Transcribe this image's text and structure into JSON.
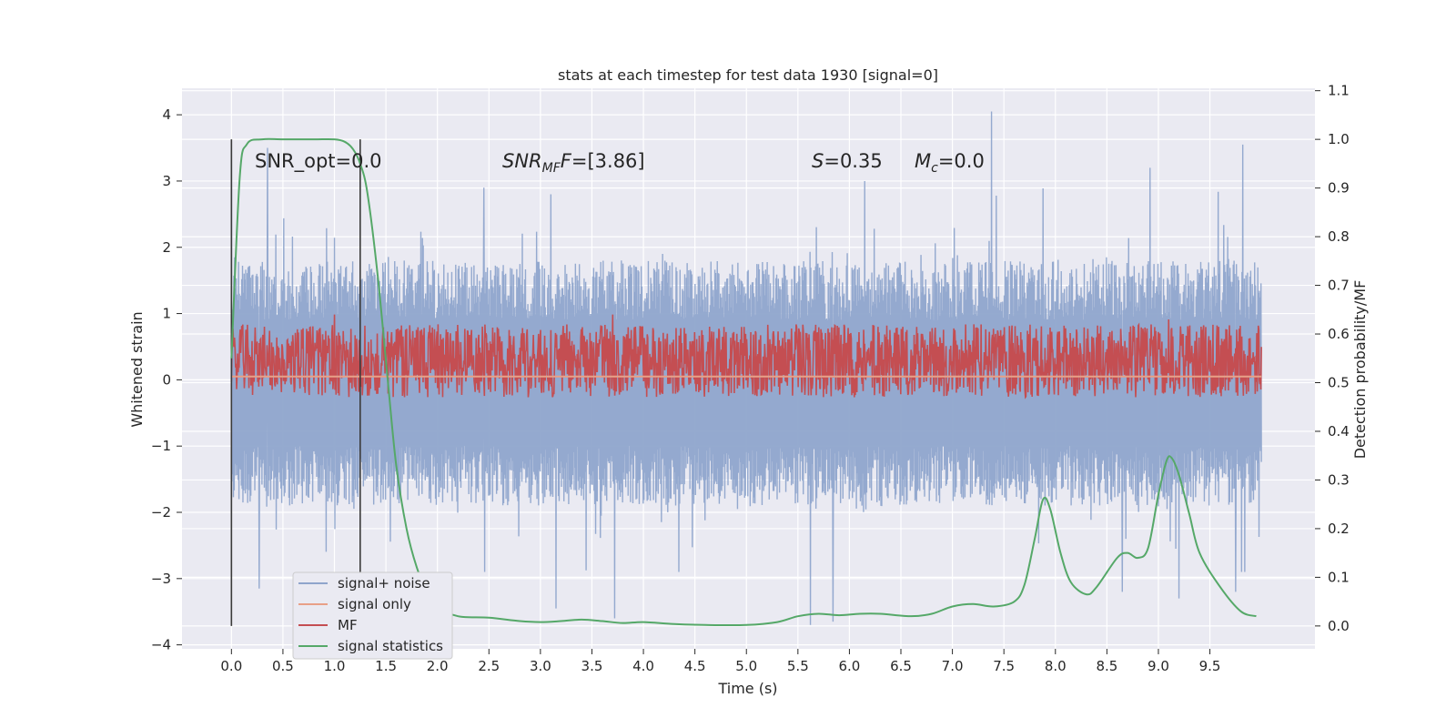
{
  "chart_data": {
    "type": "line",
    "title": "stats at each timestep for test data 1930 [signal=0]",
    "xlabel": "Time (s)",
    "ylabel": "Whitened strain",
    "y2label": "Detection probability/MF",
    "xlim": [
      -0.48,
      10.52
    ],
    "ylim": [
      -4.06,
      4.4
    ],
    "y2lim": [
      -0.047,
      1.105
    ],
    "xticks": [
      0.0,
      0.5,
      1.0,
      1.5,
      2.0,
      2.5,
      3.0,
      3.5,
      4.0,
      4.5,
      5.0,
      5.5,
      6.0,
      6.5,
      7.0,
      7.5,
      8.0,
      8.5,
      9.0,
      9.5
    ],
    "xtick_labels": [
      "0.0",
      "0.5",
      "1.0",
      "1.5",
      "2.0",
      "2.5",
      "3.0",
      "3.5",
      "4.0",
      "4.5",
      "5.0",
      "5.5",
      "6.0",
      "6.5",
      "7.0",
      "7.5",
      "8.0",
      "8.5",
      "9.0",
      "9.5"
    ],
    "yticks": [
      4,
      3,
      2,
      1,
      0,
      -1,
      -2,
      -3,
      -4
    ],
    "ytick_labels": [
      "4",
      "3",
      "2",
      "1",
      "0",
      "−1",
      "−2",
      "−3",
      "−4"
    ],
    "y2ticks": [
      1.1,
      1.0,
      0.9,
      0.8,
      0.7,
      0.6,
      0.5,
      0.4,
      0.3,
      0.2,
      0.1,
      0.0
    ],
    "y2tick_labels": [
      "1.1",
      "1.0",
      "0.9",
      "0.8",
      "0.7",
      "0.6",
      "0.5",
      "0.4",
      "0.3",
      "0.2",
      "0.1",
      "0.0"
    ],
    "grid": true,
    "legend_position": "lower-left",
    "annotations": {
      "snr_opt": "SNR_opt=0.0",
      "snr_mf_base": "SNR",
      "snr_mf_sub": "MF",
      "snr_mf_rest": "=[3.86]",
      "s_sym": "S",
      "s_val": "=0.35",
      "mc_base": "M",
      "mc_sub": "c",
      "mc_val": "=0.0"
    },
    "window_markers": {
      "x": [
        0.0,
        1.25
      ],
      "y2_range": [
        0.0,
        1.0
      ]
    },
    "series": [
      {
        "name": "signal+ noise",
        "axis": "left",
        "color": "#8fa5cc",
        "description_note": "whitened strain noise, approx. band -1.7 to 1.4 with spikes up to 4.05 and down to -3.7",
        "spikes_up": [
          [
            0.0,
            3.6
          ],
          [
            0.35,
            3.5
          ],
          [
            7.38,
            4.05
          ],
          [
            9.82,
            3.55
          ],
          [
            5.62,
            3.5
          ],
          [
            2.45,
            2.9
          ],
          [
            8.92,
            3.2
          ],
          [
            6.15,
            3.0
          ],
          [
            3.1,
            2.8
          ]
        ],
        "spikes_down": [
          [
            0.27,
            -3.15
          ],
          [
            3.72,
            -3.6
          ],
          [
            5.62,
            -3.7
          ],
          [
            5.84,
            -3.65
          ],
          [
            2.46,
            -2.9
          ],
          [
            3.15,
            -3.45
          ],
          [
            9.2,
            -3.3
          ],
          [
            8.65,
            -3.2
          ],
          [
            9.75,
            -3.2
          ]
        ]
      },
      {
        "name": "signal only",
        "axis": "left",
        "color": "#e8a087",
        "x": [
          0.0,
          10.0
        ],
        "y": [
          0.05,
          0.05
        ]
      },
      {
        "name": "MF",
        "axis": "right",
        "color": "#c44e52",
        "band": [
          0.47,
          0.62
        ],
        "peaks": [
          [
            1.0,
            0.64
          ],
          [
            3.7,
            0.64
          ],
          [
            9.1,
            0.63
          ]
        ]
      },
      {
        "name": "signal statistics",
        "axis": "right",
        "color": "#55a868",
        "x": [
          0.0,
          0.08,
          0.15,
          0.3,
          0.5,
          0.8,
          1.0,
          1.1,
          1.18,
          1.25,
          1.32,
          1.42,
          1.52,
          1.6,
          1.7,
          1.8,
          1.9,
          2.0,
          2.2,
          2.5,
          2.8,
          3.0,
          3.2,
          3.4,
          3.6,
          3.8,
          4.0,
          4.3,
          4.6,
          5.0,
          5.3,
          5.5,
          5.7,
          5.9,
          6.1,
          6.3,
          6.6,
          6.8,
          7.0,
          7.2,
          7.4,
          7.6,
          7.7,
          7.8,
          7.88,
          7.95,
          8.05,
          8.15,
          8.3,
          8.4,
          8.6,
          8.7,
          8.8,
          8.9,
          9.0,
          9.08,
          9.13,
          9.2,
          9.3,
          9.4,
          9.6,
          9.8,
          9.95
        ],
        "y": [
          0.55,
          0.92,
          0.99,
          1.0,
          1.0,
          1.0,
          1.0,
          0.995,
          0.98,
          0.95,
          0.89,
          0.72,
          0.5,
          0.33,
          0.2,
          0.12,
          0.07,
          0.04,
          0.02,
          0.017,
          0.01,
          0.008,
          0.01,
          0.013,
          0.01,
          0.006,
          0.008,
          0.004,
          0.002,
          0.002,
          0.008,
          0.02,
          0.025,
          0.022,
          0.025,
          0.025,
          0.02,
          0.025,
          0.04,
          0.045,
          0.04,
          0.05,
          0.085,
          0.18,
          0.26,
          0.24,
          0.15,
          0.09,
          0.065,
          0.08,
          0.14,
          0.15,
          0.14,
          0.16,
          0.27,
          0.34,
          0.345,
          0.31,
          0.23,
          0.15,
          0.08,
          0.03,
          0.02
        ]
      }
    ]
  }
}
